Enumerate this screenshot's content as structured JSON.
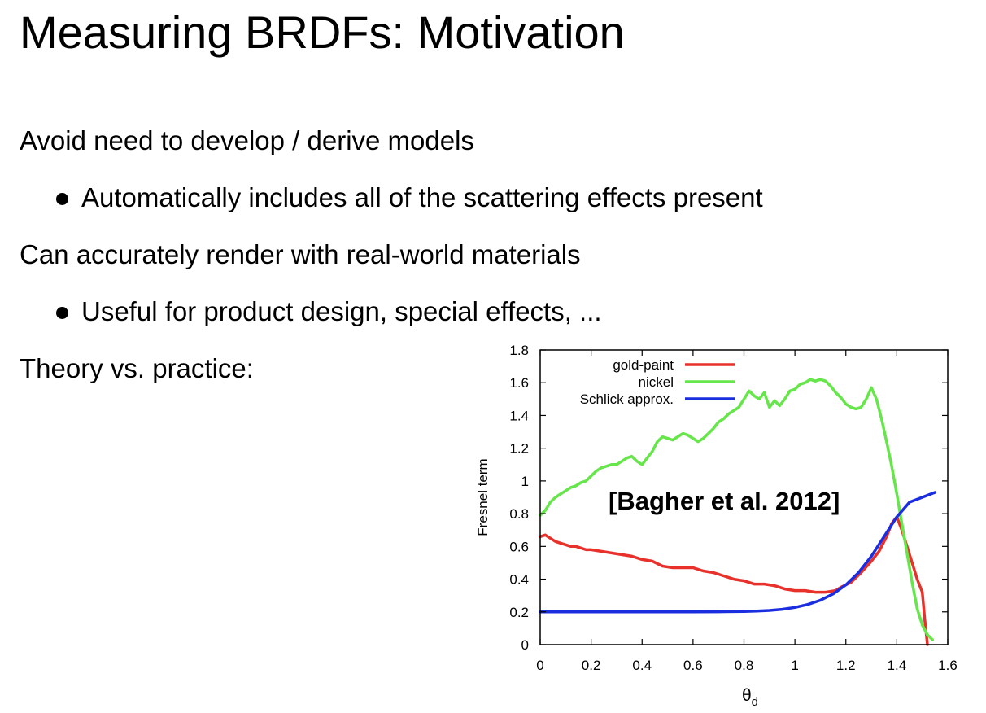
{
  "slide": {
    "title": "Measuring BRDFs: Motivation",
    "bullets": [
      {
        "text": "Avoid need to develop / derive models",
        "level": 0
      },
      {
        "text": "Automatically includes all of the scattering effects present",
        "level": 1
      },
      {
        "text": "Can accurately render with real-world materials",
        "level": 0
      },
      {
        "text": "Useful for product design, special effects, ...",
        "level": 1
      },
      {
        "text": "Theory vs. practice:",
        "level": 0
      }
    ]
  },
  "chart_data": {
    "type": "line",
    "xlabel": "θ",
    "xlabel_sub": "d",
    "ylabel": "Fresnel term",
    "annotation": "[Bagher et al. 2012]",
    "xlim": [
      0,
      1.6
    ],
    "ylim": [
      0,
      1.8
    ],
    "xticks": [
      0,
      0.2,
      0.4,
      0.6,
      0.8,
      1,
      1.2,
      1.4,
      1.6
    ],
    "xtick_labels": [
      "0",
      "0.2",
      "0.4",
      "0.6",
      "0.8",
      "1",
      "1.2",
      "1.4",
      "1.6"
    ],
    "yticks": [
      0,
      0.2,
      0.4,
      0.6,
      0.8,
      1,
      1.2,
      1.4,
      1.6,
      1.8
    ],
    "ytick_labels": [
      "0",
      "0.2",
      "0.4",
      "0.6",
      "0.8",
      "1",
      "1.2",
      "1.4",
      "1.6",
      "1.8"
    ],
    "grid": false,
    "legend_position": "top-left",
    "series": [
      {
        "name": "gold-paint",
        "color": "#e8312a",
        "points": [
          [
            0,
            0.66
          ],
          [
            0.02,
            0.67
          ],
          [
            0.04,
            0.65
          ],
          [
            0.06,
            0.63
          ],
          [
            0.08,
            0.62
          ],
          [
            0.1,
            0.61
          ],
          [
            0.12,
            0.6
          ],
          [
            0.14,
            0.6
          ],
          [
            0.16,
            0.59
          ],
          [
            0.18,
            0.58
          ],
          [
            0.2,
            0.58
          ],
          [
            0.24,
            0.57
          ],
          [
            0.28,
            0.56
          ],
          [
            0.32,
            0.55
          ],
          [
            0.36,
            0.54
          ],
          [
            0.4,
            0.52
          ],
          [
            0.44,
            0.51
          ],
          [
            0.48,
            0.48
          ],
          [
            0.52,
            0.47
          ],
          [
            0.56,
            0.47
          ],
          [
            0.6,
            0.47
          ],
          [
            0.64,
            0.45
          ],
          [
            0.68,
            0.44
          ],
          [
            0.72,
            0.42
          ],
          [
            0.76,
            0.4
          ],
          [
            0.8,
            0.39
          ],
          [
            0.84,
            0.37
          ],
          [
            0.88,
            0.37
          ],
          [
            0.92,
            0.36
          ],
          [
            0.96,
            0.34
          ],
          [
            1.0,
            0.33
          ],
          [
            1.04,
            0.33
          ],
          [
            1.08,
            0.32
          ],
          [
            1.12,
            0.32
          ],
          [
            1.16,
            0.33
          ],
          [
            1.18,
            0.35
          ],
          [
            1.22,
            0.38
          ],
          [
            1.26,
            0.44
          ],
          [
            1.3,
            0.51
          ],
          [
            1.33,
            0.57
          ],
          [
            1.36,
            0.66
          ],
          [
            1.38,
            0.74
          ],
          [
            1.4,
            0.78
          ],
          [
            1.42,
            0.7
          ],
          [
            1.44,
            0.6
          ],
          [
            1.46,
            0.5
          ],
          [
            1.48,
            0.4
          ],
          [
            1.5,
            0.32
          ],
          [
            1.51,
            0.15
          ],
          [
            1.52,
            0.0
          ]
        ]
      },
      {
        "name": "nickel",
        "color": "#66e64a",
        "points": [
          [
            0,
            0.79
          ],
          [
            0.02,
            0.82
          ],
          [
            0.04,
            0.87
          ],
          [
            0.06,
            0.9
          ],
          [
            0.08,
            0.92
          ],
          [
            0.1,
            0.94
          ],
          [
            0.12,
            0.96
          ],
          [
            0.14,
            0.97
          ],
          [
            0.16,
            0.99
          ],
          [
            0.18,
            1.0
          ],
          [
            0.2,
            1.03
          ],
          [
            0.22,
            1.06
          ],
          [
            0.24,
            1.08
          ],
          [
            0.26,
            1.09
          ],
          [
            0.28,
            1.1
          ],
          [
            0.3,
            1.1
          ],
          [
            0.32,
            1.12
          ],
          [
            0.34,
            1.14
          ],
          [
            0.36,
            1.15
          ],
          [
            0.38,
            1.12
          ],
          [
            0.4,
            1.1
          ],
          [
            0.42,
            1.14
          ],
          [
            0.44,
            1.18
          ],
          [
            0.46,
            1.24
          ],
          [
            0.48,
            1.27
          ],
          [
            0.5,
            1.26
          ],
          [
            0.52,
            1.25
          ],
          [
            0.54,
            1.27
          ],
          [
            0.56,
            1.29
          ],
          [
            0.58,
            1.28
          ],
          [
            0.6,
            1.26
          ],
          [
            0.62,
            1.24
          ],
          [
            0.64,
            1.26
          ],
          [
            0.66,
            1.29
          ],
          [
            0.68,
            1.32
          ],
          [
            0.7,
            1.36
          ],
          [
            0.72,
            1.38
          ],
          [
            0.74,
            1.41
          ],
          [
            0.76,
            1.43
          ],
          [
            0.78,
            1.45
          ],
          [
            0.8,
            1.5
          ],
          [
            0.82,
            1.55
          ],
          [
            0.84,
            1.52
          ],
          [
            0.86,
            1.5
          ],
          [
            0.88,
            1.54
          ],
          [
            0.9,
            1.45
          ],
          [
            0.92,
            1.49
          ],
          [
            0.94,
            1.46
          ],
          [
            0.96,
            1.5
          ],
          [
            0.98,
            1.55
          ],
          [
            1.0,
            1.56
          ],
          [
            1.02,
            1.59
          ],
          [
            1.04,
            1.6
          ],
          [
            1.06,
            1.62
          ],
          [
            1.08,
            1.61
          ],
          [
            1.1,
            1.62
          ],
          [
            1.12,
            1.61
          ],
          [
            1.14,
            1.58
          ],
          [
            1.16,
            1.54
          ],
          [
            1.18,
            1.51
          ],
          [
            1.2,
            1.47
          ],
          [
            1.22,
            1.45
          ],
          [
            1.24,
            1.44
          ],
          [
            1.26,
            1.45
          ],
          [
            1.28,
            1.5
          ],
          [
            1.3,
            1.57
          ],
          [
            1.32,
            1.5
          ],
          [
            1.34,
            1.38
          ],
          [
            1.36,
            1.24
          ],
          [
            1.38,
            1.09
          ],
          [
            1.4,
            0.92
          ],
          [
            1.42,
            0.74
          ],
          [
            1.44,
            0.56
          ],
          [
            1.46,
            0.38
          ],
          [
            1.48,
            0.22
          ],
          [
            1.5,
            0.12
          ],
          [
            1.52,
            0.06
          ],
          [
            1.54,
            0.03
          ]
        ]
      },
      {
        "name": "Schlick approx.",
        "color": "#1a2ee0",
        "points": [
          [
            0,
            0.2
          ],
          [
            0.2,
            0.2
          ],
          [
            0.4,
            0.2
          ],
          [
            0.6,
            0.2
          ],
          [
            0.7,
            0.201
          ],
          [
            0.8,
            0.203
          ],
          [
            0.85,
            0.205
          ],
          [
            0.9,
            0.209
          ],
          [
            0.95,
            0.216
          ],
          [
            1.0,
            0.227
          ],
          [
            1.05,
            0.245
          ],
          [
            1.1,
            0.271
          ],
          [
            1.15,
            0.31
          ],
          [
            1.2,
            0.365
          ],
          [
            1.25,
            0.44
          ],
          [
            1.3,
            0.54
          ],
          [
            1.35,
            0.66
          ],
          [
            1.4,
            0.78
          ],
          [
            1.45,
            0.87
          ],
          [
            1.5,
            0.9
          ],
          [
            1.55,
            0.93
          ]
        ]
      }
    ]
  }
}
